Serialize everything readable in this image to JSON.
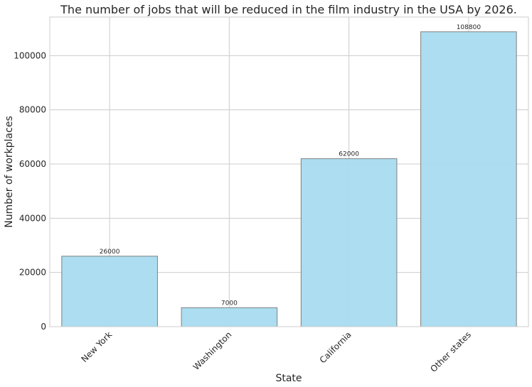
{
  "chart_data": {
    "type": "bar",
    "title": "The number of jobs that will be reduced in the film industry in the USA by 2026.",
    "xlabel": "State",
    "ylabel": "Number of workplaces",
    "categories": [
      "New York",
      "Washington",
      "California",
      "Other states"
    ],
    "values": [
      26000,
      7000,
      62000,
      108800
    ],
    "data_labels": [
      "26000",
      "7000",
      "62000",
      "108800"
    ],
    "ylim": [
      0,
      114240
    ],
    "yticks": [
      0,
      20000,
      40000,
      60000,
      80000,
      100000
    ],
    "ytick_labels": [
      "0",
      "20000",
      "40000",
      "60000",
      "80000",
      "100000"
    ],
    "grid": true,
    "bar_color": "#a8dbef",
    "bar_edge_color": "#808080"
  }
}
